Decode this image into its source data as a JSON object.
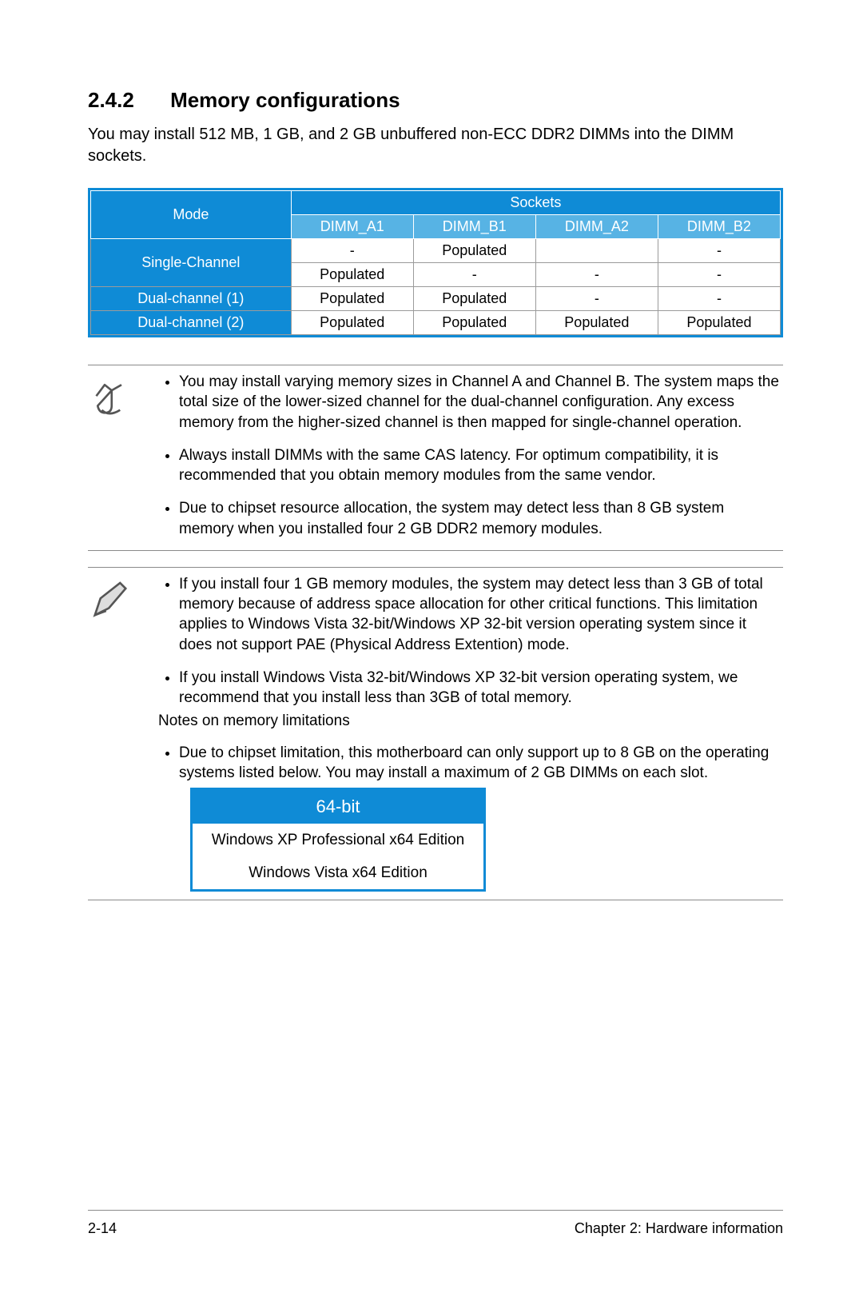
{
  "colors": {
    "brand": "#0f8bd6",
    "brand2": "#57b3e4",
    "rule": "#8a8a8a"
  },
  "heading": {
    "number": "2.4.2",
    "title": "Memory configurations"
  },
  "intro": "You may install 512 MB, 1 GB, and 2 GB unbuffered non-ECC DDR2 DIMMs into the DIMM sockets.",
  "sockets_table": {
    "mode_header": "Mode",
    "sockets_header": "Sockets",
    "dimm_headers": [
      "DIMM_A1",
      "DIMM_B1",
      "DIMM_A2",
      "DIMM_B2"
    ],
    "rows": [
      {
        "mode": "Single-Channel",
        "span": 2,
        "cells": [
          [
            "-",
            "Populated",
            "",
            "-"
          ],
          [
            "Populated",
            "-",
            "-",
            "-"
          ]
        ]
      },
      {
        "mode": "Dual-channel (1)",
        "span": 1,
        "cells": [
          [
            "Populated",
            "Populated",
            "-",
            "-"
          ]
        ]
      },
      {
        "mode": "Dual-channel (2)",
        "span": 1,
        "cells": [
          [
            "Populated",
            "Populated",
            "Populated",
            "Populated"
          ]
        ]
      }
    ]
  },
  "note1": {
    "items": [
      "You may install varying memory sizes in Channel A and Channel B. The system maps the total size of the lower-sized channel for the dual-channel configuration. Any excess memory from the higher-sized channel is then mapped for single-channel operation.",
      "Always install DIMMs with the same CAS latency. For optimum compatibility, it is recommended that you obtain memory modules from the same vendor.",
      "Due to chipset resource allocation, the system may detect less than 8 GB system memory when you installed four 2 GB DDR2 memory modules."
    ]
  },
  "note2": {
    "items_a": [
      "If you install four 1 GB memory modules, the system may detect less than 3 GB of total memory because of address space allocation for other critical functions. This limitation applies to Windows Vista 32-bit/Windows XP 32-bit version operating system since it does not support PAE (Physical Address Extention) mode.",
      "If you install Windows Vista 32-bit/Windows XP 32-bit version operating system, we recommend that you install less than 3GB of total memory."
    ],
    "sub": "Notes on memory limitations",
    "items_b": [
      "Due to chipset limitation, this motherboard can only support up to 8 GB on the operating systems listed below. You may install a maximum of 2 GB DIMMs on each slot."
    ]
  },
  "os_box": {
    "header": "64-bit",
    "rows": [
      "Windows XP Professional x64 Edition",
      "Windows Vista x64 Edition"
    ]
  },
  "footer": {
    "left": "2-14",
    "right": "Chapter 2: Hardware information"
  }
}
